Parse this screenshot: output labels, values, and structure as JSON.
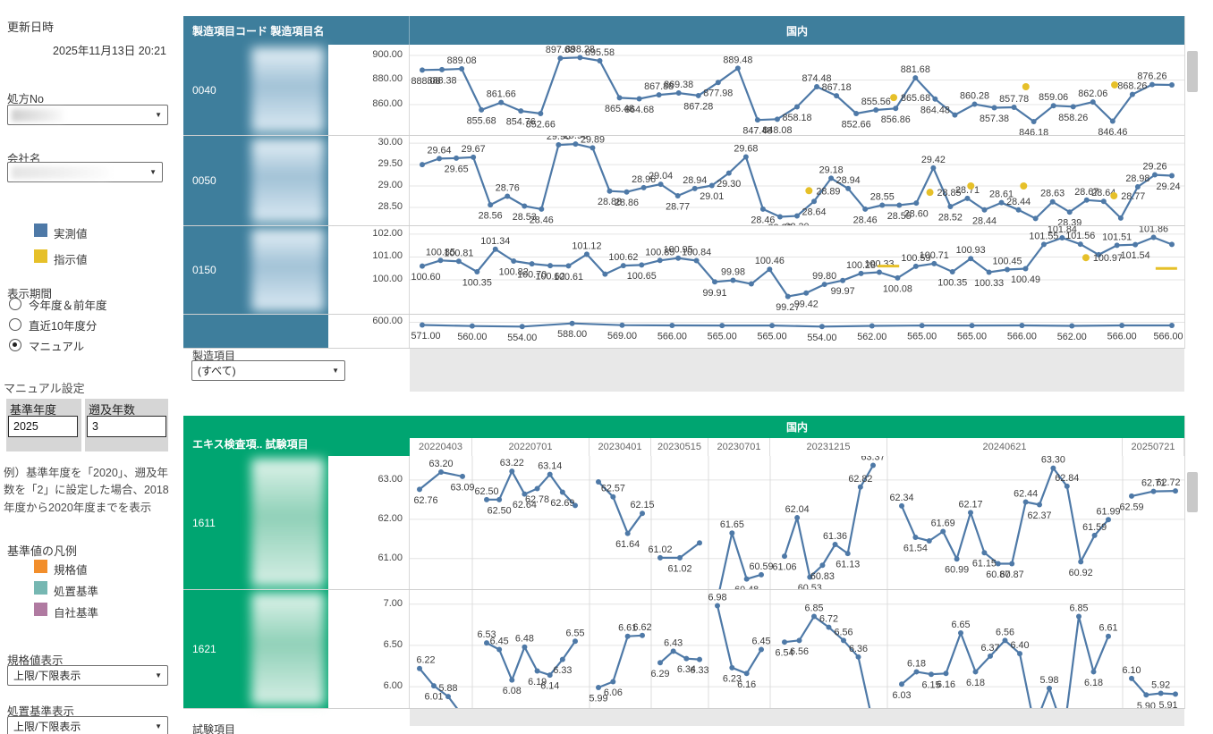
{
  "sidebar": {
    "updated_label": "更新日時",
    "updated_value": "2025年11月13日 20:21",
    "recipe_no": {
      "label": "処方No"
    },
    "company": {
      "label": "会社名"
    },
    "series_legend": [
      {
        "label": "実測値",
        "color": "#4E79A7"
      },
      {
        "label": "指示値",
        "color": "#E6C029"
      }
    ],
    "period": {
      "label": "表示期間",
      "options": [
        {
          "label": "今年度＆前年度",
          "selected": false
        },
        {
          "label": "直近10年度分",
          "selected": false
        },
        {
          "label": "マニュアル",
          "selected": true
        }
      ]
    },
    "manual_settings": {
      "title": "マニュアル設定",
      "base_year": {
        "label": "基準年度",
        "value": "2025"
      },
      "lookback_years": {
        "label": "遡及年数",
        "value": "3"
      },
      "note": "例）基準年度を「2020」、遡及年数を「2」に設定した場合、2018年度から2020年度までを表示"
    },
    "reference_legend": {
      "title": "基準値の凡例",
      "items": [
        {
          "label": "規格値",
          "color": "#F28E2B"
        },
        {
          "label": "処置基準",
          "color": "#76B7B2"
        },
        {
          "label": "自社基準",
          "color": "#B07AA1"
        }
      ]
    },
    "spec_display": {
      "label": "規格値表示",
      "value": "上限/下限表示"
    },
    "action_display": {
      "label": "処置基準表示",
      "value": "上限/下限表示"
    }
  },
  "top_panel": {
    "header_left": "製造項目コード 製造項目名",
    "header_right": "国内",
    "filter": {
      "label": "製造項目",
      "value": "(すべて)"
    }
  },
  "bottom_panel": {
    "header_left": "エキス検査項.. 試験項目",
    "header_right": "国内",
    "filter_label": "試験項目"
  },
  "chart_data": {
    "type": "line",
    "series_color": "#4E79A7",
    "indicated_color": "#E6C029",
    "legend": [
      "実測値",
      "指示値"
    ],
    "panels": [
      {
        "id": "manufacturing",
        "rows": [
          {
            "code": "0040",
            "blur": true,
            "yticks": [
              900,
              880,
              860
            ],
            "ylim": [
              834.5,
              908.7
            ],
            "values": [
              888.08,
              888.38,
              889.08,
              855.68,
              861.66,
              854.76,
              852.66,
              897.68,
              898.28,
              895.58,
              865.48,
              864.68,
              867.88,
              869.38,
              867.28,
              877.98,
              889.48,
              847.48,
              848.08,
              858.18,
              874.48,
              867.18,
              852.66,
              855.56,
              856.86,
              881.68,
              864.48,
              {
                "v": 851.5,
                "label": ""
              },
              860.28,
              857.38,
              857.78,
              846.18,
              859.06,
              858.26,
              862.06,
              846.46,
              868.26,
              876.26,
              {
                "v": 876.0,
                "label": ""
              }
            ],
            "indicated": [
              {
                "x": 23.9,
                "v": 865.68,
                "label": "865.68"
              },
              {
                "x": 30.6,
                "v": 874.5
              },
              {
                "x": 35.1,
                "v": 876.0
              }
            ]
          },
          {
            "code": "0050",
            "blur": true,
            "yticks": [
              30.0,
              29.5,
              29.0,
              28.5
            ],
            "ylim": [
              28.06,
              30.17
            ],
            "values": [
              {
                "v": 29.5,
                "label": ""
              },
              29.64,
              29.65,
              29.67,
              28.56,
              28.76,
              28.53,
              28.46,
              29.96,
              29.98,
              29.89,
              28.88,
              28.86,
              28.96,
              29.04,
              28.77,
              28.94,
              29.01,
              29.3,
              29.68,
              28.46,
              28.28,
              28.3,
              28.64,
              29.18,
              28.94,
              28.46,
              28.55,
              28.55,
              28.6,
              29.42,
              28.52,
              28.71,
              28.44,
              28.61,
              28.44,
              28.24,
              28.63,
              28.39,
              28.67,
              28.64,
              28.25,
              28.98,
              29.26,
              29.24
            ],
            "indicated": [
              {
                "x": 22.7,
                "v": 28.89,
                "label": "28.89"
              },
              {
                "x": 29.8,
                "v": 28.85,
                "label": "28.85"
              },
              {
                "x": 32.2,
                "v": 29.0
              },
              {
                "x": 35.3,
                "v": 29.0
              },
              {
                "x": 40.6,
                "v": 28.77,
                "label": "28.77"
              }
            ]
          },
          {
            "code": "0150",
            "blur": true,
            "yticks": [
              102,
              101,
              100
            ],
            "ylim": [
              98.47,
              102.35
            ],
            "values": [
              100.6,
              100.85,
              100.81,
              100.35,
              101.34,
              100.82,
              100.7,
              100.62,
              100.61,
              101.12,
              {
                "v": 100.25,
                "label": ""
              },
              100.62,
              100.65,
              100.85,
              100.95,
              100.84,
              99.91,
              99.98,
              {
                "v": 99.82,
                "label": ""
              },
              100.46,
              99.27,
              99.42,
              99.8,
              99.97,
              100.28,
              100.33,
              100.08,
              100.59,
              100.71,
              100.35,
              100.93,
              100.33,
              100.45,
              100.49,
              101.55,
              101.84,
              101.56,
              {
                "v": 101.1,
                "label": ""
              },
              101.51,
              101.54,
              101.86,
              {
                "v": 101.55,
                "label": ""
              }
            ],
            "indicated": [
              {
                "x": 25.5,
                "v": 100.6,
                "dash": true
              },
              {
                "x": 36.3,
                "v": 100.97,
                "label": "100.97"
              },
              {
                "x": 40.7,
                "v": 100.5,
                "dash": true
              }
            ]
          },
          {
            "code": "",
            "blur": false,
            "labels_below": true,
            "yticks": [
              600
            ],
            "ylim": [
              320,
              680
            ],
            "values": [
              571,
              560,
              554,
              588,
              569,
              566,
              565,
              565,
              554,
              562,
              565,
              565,
              566,
              562,
              566,
              566
            ]
          }
        ]
      },
      {
        "id": "extract-tests",
        "columns": [
          "20220403",
          "20220701",
          "20230401",
          "20230515",
          "20230701",
          "20231215",
          "20240621",
          "20250721"
        ],
        "rows": [
          {
            "code": "1611",
            "blur": true,
            "yticks": [
              63,
              62,
              61
            ],
            "ylim": [
              60.2,
              63.61
            ],
            "groups": [
              [
                62.76,
                63.2,
                63.09
              ],
              [
                62.5,
                62.5,
                63.22,
                62.64,
                62.78,
                63.14,
                62.69,
                {
                  "v": 62.35,
                  "label": ""
                }
              ],
              [
                {
                  "v": 62.95,
                  "label": ""
                },
                62.57,
                61.64,
                62.15
              ],
              [
                61.02,
                61.02,
                {
                  "v": 61.4,
                  "label": ""
                }
              ],
              [
                {
                  "v": 59.95,
                  "label": ""
                },
                61.65,
                60.48,
                60.59
              ],
              [
                61.06,
                62.04,
                60.53,
                60.83,
                61.36,
                61.13,
                62.82,
                63.37
              ],
              [
                62.34,
                61.54,
                {
                  "v": 61.45,
                  "label": ""
                },
                61.69,
                60.99,
                62.17,
                61.15,
                60.87,
                60.87,
                62.44,
                62.37,
                63.3,
                62.84,
                60.92,
                61.59,
                61.99
              ],
              [
                62.59,
                62.71,
                62.72
              ]
            ]
          },
          {
            "code": "1621",
            "blur": true,
            "yticks": [
              7.0,
              6.5,
              6.0
            ],
            "ylim": [
              5.73,
              7.17
            ],
            "groups": [
              [
                6.22,
                6.01,
                5.88,
                {
                  "v": 5.65,
                  "label": ""
                }
              ],
              [
                6.53,
                6.45,
                6.08,
                6.48,
                6.19,
                6.14,
                6.33,
                6.55
              ],
              [
                5.99,
                6.06,
                6.61,
                6.62
              ],
              [
                6.29,
                6.43,
                6.34,
                6.33
              ],
              [
                6.98,
                6.23,
                6.16,
                6.45
              ],
              [
                6.54,
                6.56,
                6.85,
                6.72,
                6.56,
                6.36,
                {
                  "v": 5.55,
                  "label": ""
                }
              ],
              [
                6.03,
                6.18,
                6.15,
                6.16,
                6.65,
                6.18,
                6.37,
                6.56,
                6.4,
                {
                  "v": 5.52,
                  "label": ""
                },
                5.98,
                {
                  "v": 5.45,
                  "label": ""
                },
                6.85,
                6.18,
                6.61
              ],
              [
                6.1,
                {
                  "v": 5.9,
                  "label": "5.90"
                },
                5.92,
                {
                  "v": 5.91,
                  "label": "5.91"
                }
              ]
            ]
          }
        ]
      }
    ]
  }
}
